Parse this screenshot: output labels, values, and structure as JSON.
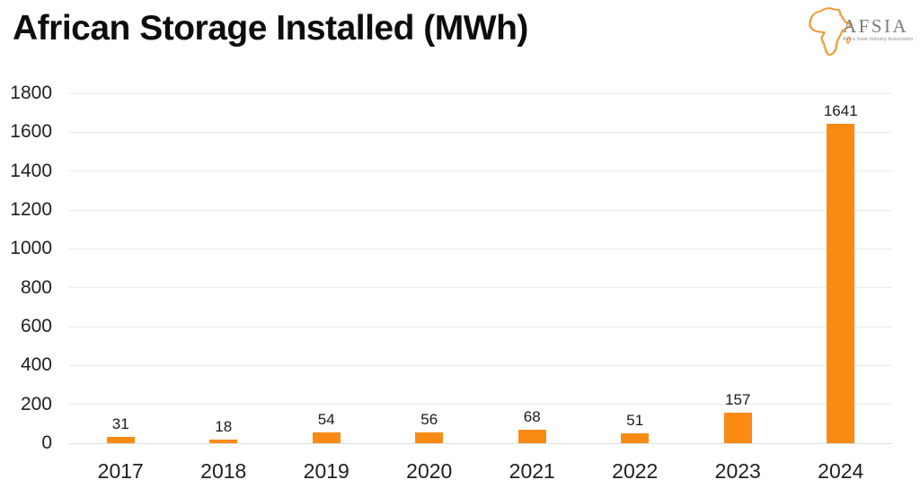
{
  "header": {
    "title": "African Storage Installed (MWh)",
    "logo": {
      "wordmark": "AFSIA",
      "subtitle": "Africa Solar Industry Association",
      "accent_color": "#F7941D",
      "text_color": "#7B7C7F"
    }
  },
  "chart_data": {
    "type": "bar",
    "title": "African Storage Installed (MWh)",
    "categories": [
      "2017",
      "2018",
      "2019",
      "2020",
      "2021",
      "2022",
      "2023",
      "2024"
    ],
    "values": [
      31,
      18,
      54,
      56,
      68,
      51,
      157,
      1641
    ],
    "xlabel": "",
    "ylabel": "",
    "ylim": [
      0,
      1800
    ],
    "yticks": [
      0,
      200,
      400,
      600,
      800,
      1000,
      1200,
      1400,
      1600,
      1800
    ],
    "grid": "horizontal",
    "legend_position": "none",
    "bar_color": "#F98B15",
    "gridline_color": "#ECECEC",
    "baseline_color": "#DDDDDD",
    "label_color": "#211F1D"
  }
}
